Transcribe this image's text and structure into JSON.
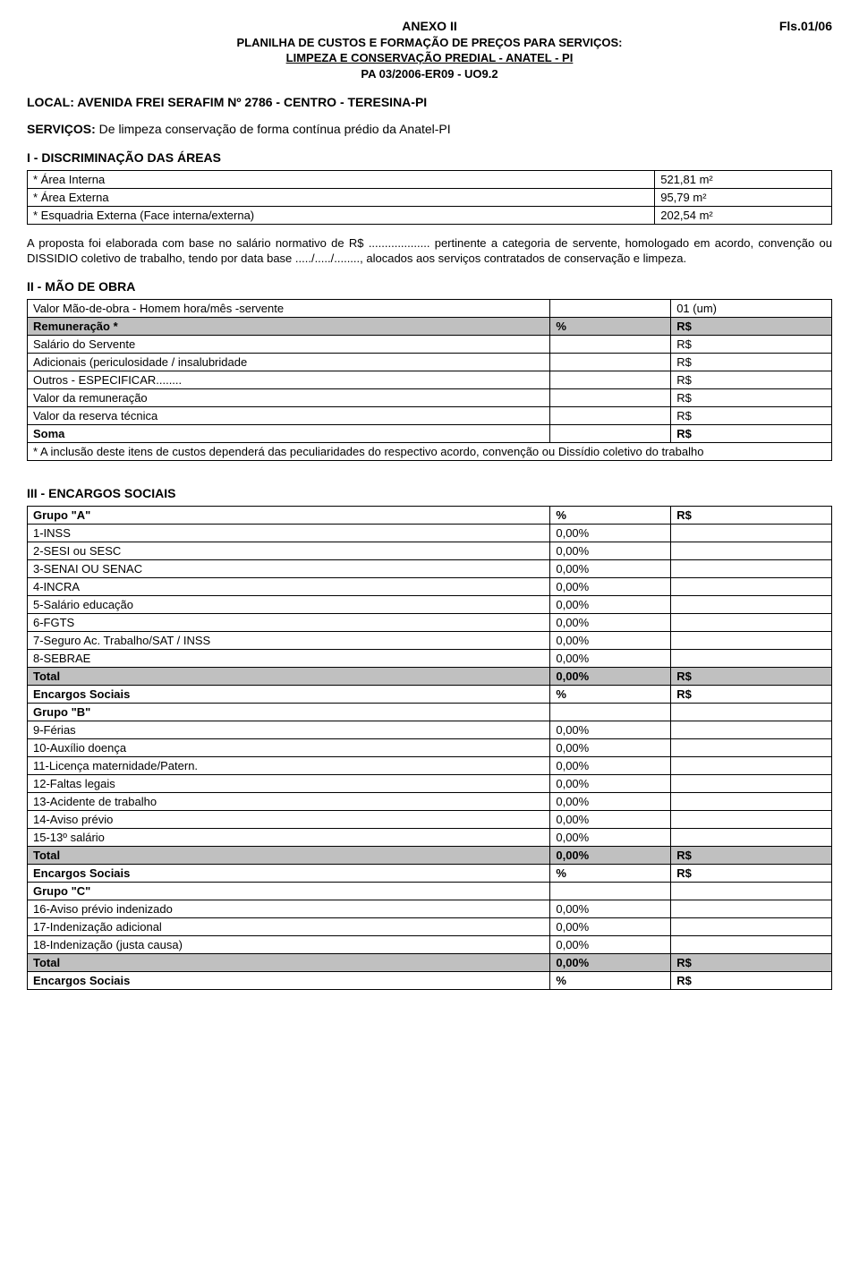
{
  "header": {
    "anexo": "ANEXO II",
    "fls": "Fls.01/06",
    "line1": "PLANILHA DE CUSTOS E FORMAÇÃO DE PREÇOS PARA SERVIÇOS:",
    "line2": "LIMPEZA E CONSERVAÇÃO PREDIAL - ANATEL - PI",
    "line3": "PA 03/2006-ER09 - UO9.2"
  },
  "local": "LOCAL: AVENIDA FREI SERAFIM Nº 2786 - CENTRO - TERESINA-PI",
  "servicos": {
    "label": "SERVIÇOS:",
    "text": "De limpeza conservação de forma contínua prédio da Anatel-PI"
  },
  "sec1": {
    "title": "I - DISCRIMINAÇÃO DAS ÁREAS",
    "rows": [
      {
        "label": "* Área Interna",
        "value": "521,81 m²"
      },
      {
        "label": "* Área Externa",
        "value": "95,79 m²"
      },
      {
        "label": "* Esquadria Externa  (Face interna/externa)",
        "value": "202,54 m²"
      }
    ],
    "paragraph": "A proposta foi elaborada com base no salário normativo de R$ ................... pertinente a categoria de servente, homologado em acordo, convenção ou DISSIDIO coletivo de trabalho, tendo por data base ...../...../........, alocados aos serviços contratados de conservação e limpeza."
  },
  "sec2": {
    "title": "II - MÃO DE OBRA",
    "header": {
      "c1": "Valor Mão-de-obra - Homem hora/mês -servente",
      "c2": "",
      "c3": "01 (um)"
    },
    "remun": {
      "c1": "Remuneração *",
      "c2": "%",
      "c3": "R$"
    },
    "rows": [
      {
        "c1": "Salário do Servente",
        "c3": "R$"
      },
      {
        "c1": "Adicionais (periculosidade / insalubridade",
        "c3": "R$"
      },
      {
        "c1": "Outros - ESPECIFICAR........",
        "c3": "R$"
      },
      {
        "c1": "Valor da remuneração",
        "c3": "R$"
      },
      {
        "c1": "Valor da reserva técnica",
        "c3": "R$"
      }
    ],
    "soma": {
      "c1": "Soma",
      "c3": "R$"
    },
    "note": "* A inclusão deste itens de custos dependerá das peculiaridades do respectivo acordo, convenção ou Dissídio coletivo do trabalho"
  },
  "sec3": {
    "title": "III - ENCARGOS SOCIAIS",
    "groupA": {
      "label": "Grupo \"A\"",
      "pct": "%",
      "rs": "R$",
      "rows": [
        {
          "c1": "1-INSS",
          "c2": "0,00%"
        },
        {
          "c1": "2-SESI ou SESC",
          "c2": "0,00%"
        },
        {
          "c1": "3-SENAI OU SENAC",
          "c2": "0,00%"
        },
        {
          "c1": "4-INCRA",
          "c2": "0,00%"
        },
        {
          "c1": "5-Salário educação",
          "c2": "0,00%"
        },
        {
          "c1": "6-FGTS",
          "c2": "0,00%"
        },
        {
          "c1": "7-Seguro Ac. Trabalho/SAT / INSS",
          "c2": "0,00%"
        },
        {
          "c1": "8-SEBRAE",
          "c2": "0,00%"
        }
      ],
      "total": {
        "c1": "Total",
        "c2": "0,00%",
        "c3": "R$"
      },
      "enc": {
        "c1": "Encargos Sociais",
        "c2": "%",
        "c3": "R$"
      }
    },
    "groupB": {
      "label": "Grupo \"B\"",
      "rows": [
        {
          "c1": "9-Férias",
          "c2": "0,00%"
        },
        {
          "c1": "10-Auxílio doença",
          "c2": "0,00%"
        },
        {
          "c1": "11-Licença maternidade/Patern.",
          "c2": "0,00%"
        },
        {
          "c1": "12-Faltas legais",
          "c2": "0,00%"
        },
        {
          "c1": "13-Acidente de trabalho",
          "c2": "0,00%"
        },
        {
          "c1": "14-Aviso prévio",
          "c2": "0,00%"
        },
        {
          "c1": "15-13º salário",
          "c2": "0,00%"
        }
      ],
      "total": {
        "c1": "Total",
        "c2": "0,00%",
        "c3": "R$"
      },
      "enc": {
        "c1": "Encargos Sociais",
        "c2": "%",
        "c3": "R$"
      }
    },
    "groupC": {
      "label": "Grupo \"C\"",
      "rows": [
        {
          "c1": "16-Aviso prévio indenizado",
          "c2": "0,00%"
        },
        {
          "c1": "17-Indenização adicional",
          "c2": "0,00%"
        },
        {
          "c1": "18-Indenização (justa causa)",
          "c2": "0,00%"
        }
      ],
      "total": {
        "c1": "Total",
        "c2": "0,00%",
        "c3": "R$"
      },
      "enc": {
        "c1": "Encargos Sociais",
        "c2": "%",
        "c3": "R$"
      }
    }
  }
}
